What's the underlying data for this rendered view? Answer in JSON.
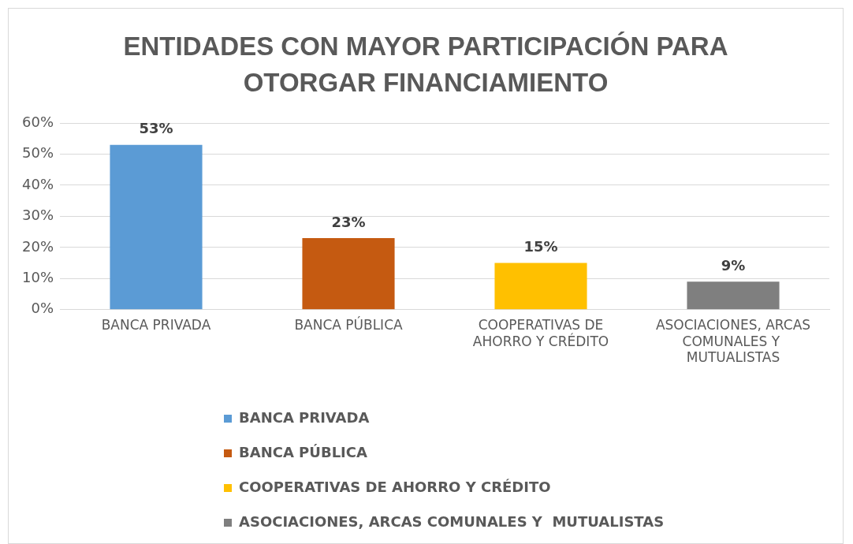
{
  "chart_data": {
    "type": "bar",
    "title": "ENTIDADES CON MAYOR PARTICIPACIÓN PARA OTORGAR FINANCIAMIENTO",
    "categories": [
      "BANCA PRIVADA",
      "BANCA PÚBLICA",
      "COOPERATIVAS DE AHORRO Y CRÉDITO",
      "ASOCIACIONES, ARCAS COMUNALES Y  MUTUALISTAS"
    ],
    "series": [
      {
        "name": "BANCA PRIVADA",
        "color": "#5b9bd5",
        "values": [
          53,
          null,
          null,
          null
        ],
        "value_labels": [
          "53%",
          null,
          null,
          null
        ]
      },
      {
        "name": "BANCA PÚBLICA",
        "color": "#c55a11",
        "values": [
          null,
          23,
          null,
          null
        ],
        "value_labels": [
          null,
          "23%",
          null,
          null
        ]
      },
      {
        "name": "COOPERATIVAS DE AHORRO Y CRÉDITO",
        "color": "#ffc000",
        "values": [
          null,
          null,
          15,
          null
        ],
        "value_labels": [
          null,
          null,
          "15%",
          null
        ]
      },
      {
        "name": "ASOCIACIONES, ARCAS COMUNALES Y  MUTUALISTAS",
        "color": "#7f7f7f",
        "values": [
          null,
          null,
          null,
          9
        ],
        "value_labels": [
          null,
          null,
          null,
          "9%"
        ]
      }
    ],
    "ylim": [
      0,
      60
    ],
    "yticks": [
      {
        "value": 0,
        "label": "0%"
      },
      {
        "value": 10,
        "label": "10%"
      },
      {
        "value": 20,
        "label": "20%"
      },
      {
        "value": 30,
        "label": "30%"
      },
      {
        "value": 40,
        "label": "40%"
      },
      {
        "value": 50,
        "label": "50%"
      },
      {
        "value": 60,
        "label": "60%"
      }
    ],
    "grid": "y",
    "legend": "bottom"
  }
}
